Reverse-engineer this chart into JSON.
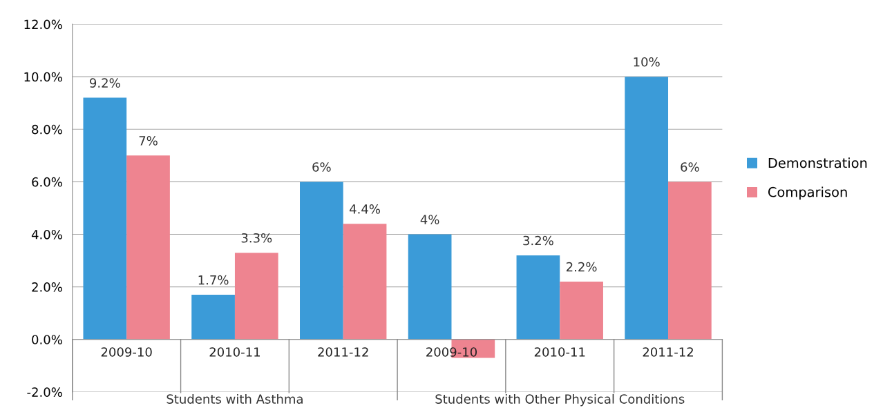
{
  "chart_data": {
    "type": "bar",
    "categories": [
      "2009-10",
      "2010-11",
      "2011-12",
      "2009-10",
      "2010-11",
      "2011-12"
    ],
    "series": [
      {
        "name": "Demonstration",
        "color": "#3b9bd8",
        "values": [
          9.2,
          1.7,
          6,
          4,
          3.2,
          10
        ],
        "value_labels": [
          "9.2%",
          "1.7%",
          "6%",
          "4%",
          "3.2%",
          "10%"
        ]
      },
      {
        "name": "Comparison",
        "color": "#ee8490",
        "values": [
          7,
          3.3,
          4.4,
          -0.7,
          2.2,
          6
        ],
        "value_labels": [
          "7%",
          "3.3%",
          "4.4%",
          null,
          "2.2%",
          "6%"
        ]
      }
    ],
    "annotations": [
      "Students with Asthma",
      "Students with Other Physical Conditions"
    ],
    "ylim": [
      -2,
      12
    ],
    "yticks": [
      {
        "value": -2,
        "label": "-2.0%"
      },
      {
        "value": 0,
        "label": "0.0%"
      },
      {
        "value": 2,
        "label": "2.0%"
      },
      {
        "value": 4,
        "label": "4.0%"
      },
      {
        "value": 6,
        "label": "6.0%"
      },
      {
        "value": 8,
        "label": "8.0%"
      },
      {
        "value": 10,
        "label": "10.0%"
      },
      {
        "value": 12,
        "label": "12.0%"
      }
    ],
    "grid": "y",
    "legend": "right"
  }
}
